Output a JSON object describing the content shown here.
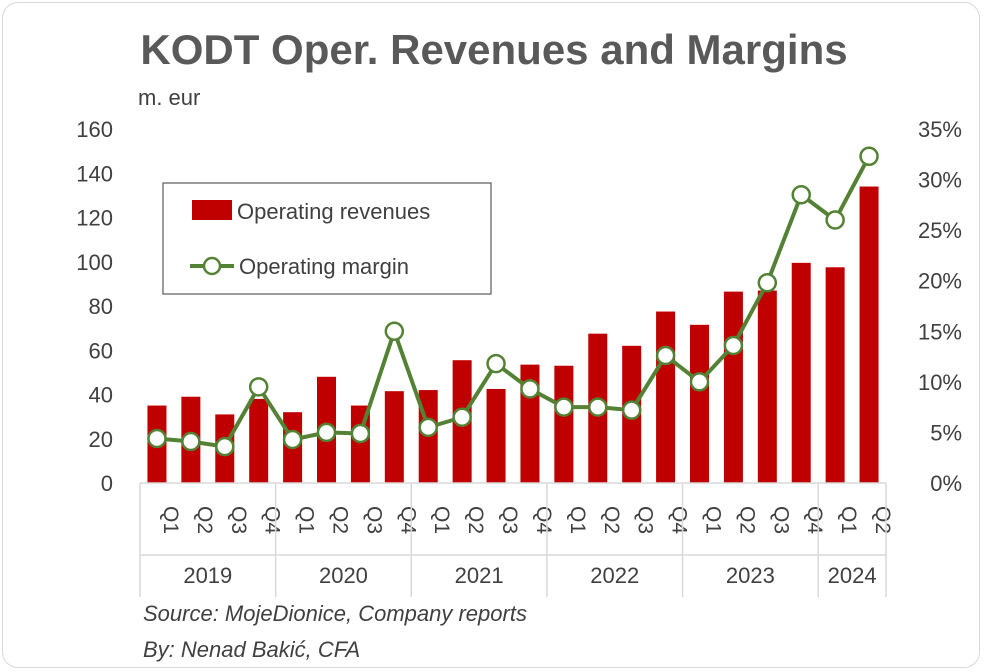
{
  "chart_data": {
    "type": "bar",
    "title": "KODT Oper. Revenues and Margins",
    "unit_label": "m. eur",
    "quarters": [
      "Q1",
      "Q2",
      "Q3",
      "Q4",
      "Q1",
      "Q2",
      "Q3",
      "Q4",
      "Q1",
      "Q2",
      "Q3",
      "Q4",
      "Q1",
      "Q2",
      "Q3",
      "Q4",
      "Q1",
      "Q2",
      "Q3",
      "Q4",
      "Q1",
      "Q2"
    ],
    "years": [
      {
        "label": "2019",
        "count": 4
      },
      {
        "label": "2020",
        "count": 4
      },
      {
        "label": "2021",
        "count": 4
      },
      {
        "label": "2022",
        "count": 4
      },
      {
        "label": "2023",
        "count": 4
      },
      {
        "label": "2024",
        "count": 2
      }
    ],
    "series": [
      {
        "name": "Operating revenues",
        "type": "bar",
        "axis": "left",
        "color": "#c00000",
        "values": [
          35,
          39,
          31,
          38,
          32,
          48,
          35,
          41.5,
          42,
          55.5,
          42.5,
          53.5,
          53,
          67.5,
          62,
          77.5,
          71.5,
          86.5,
          87,
          99.5,
          97.5,
          134
        ]
      },
      {
        "name": "Operating margin",
        "type": "line",
        "axis": "right",
        "color": "#548235",
        "values": [
          4.4,
          4.1,
          3.6,
          9.5,
          4.3,
          5.0,
          4.9,
          15.0,
          5.5,
          6.5,
          11.8,
          9.3,
          7.5,
          7.5,
          7.2,
          12.6,
          10.0,
          13.6,
          19.8,
          28.5,
          26.0,
          32.3
        ]
      }
    ],
    "y_left": {
      "min": 0,
      "max": 160,
      "step": 20,
      "ticks": [
        "0",
        "20",
        "40",
        "60",
        "80",
        "100",
        "120",
        "140",
        "160"
      ]
    },
    "y_right": {
      "min": 0,
      "max": 35,
      "step": 5,
      "ticks": [
        "0%",
        "5%",
        "10%",
        "15%",
        "20%",
        "25%",
        "30%",
        "35%"
      ]
    },
    "grid": false,
    "legend_position": "top-left"
  },
  "source_line1": "Source: MojeDionice, Company reports",
  "source_line2": "By: Nenad Bakić, CFA"
}
